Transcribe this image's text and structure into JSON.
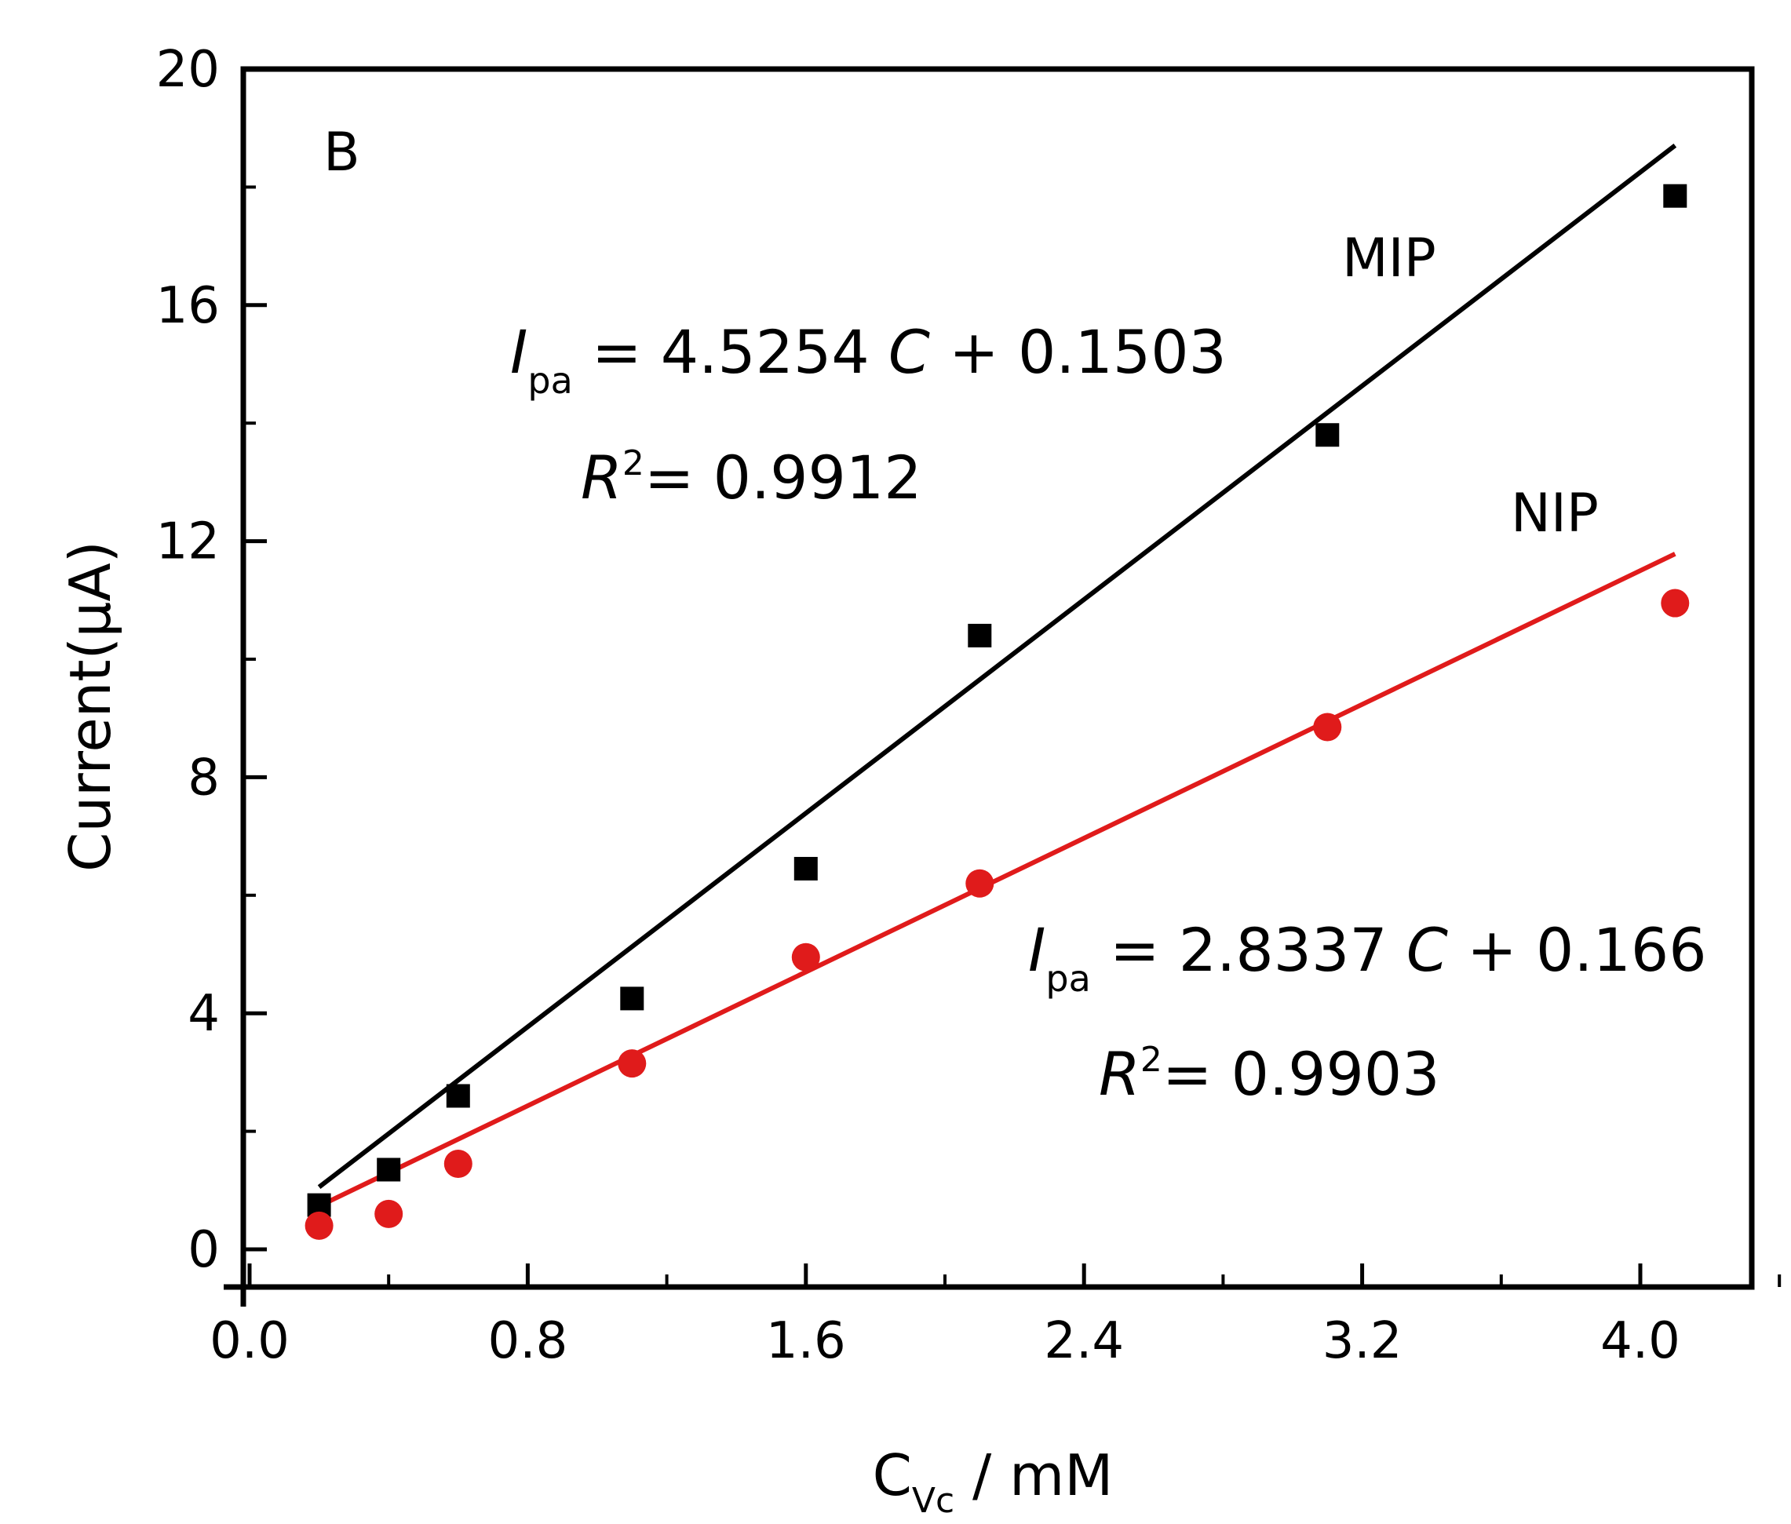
{
  "chart_data": {
    "type": "scatter",
    "panel_label": "B",
    "xlabel": {
      "main": "C",
      "sub": "Vc",
      "rest": " / mM"
    },
    "ylabel": "Current(μA)",
    "xlim": [
      0.0,
      4.4
    ],
    "ylim": [
      -0.6,
      20
    ],
    "xticks": [
      0.0,
      0.8,
      1.6,
      2.4,
      3.2,
      4.0
    ],
    "xtick_labels": [
      "0.0",
      "0.8",
      "1.6",
      "2.4",
      "3.2",
      "4.0"
    ],
    "yticks": [
      0,
      4,
      8,
      12,
      16,
      20
    ],
    "ytick_labels": [
      "0",
      "4",
      "8",
      "12",
      "16",
      "20"
    ],
    "grid": false,
    "series": [
      {
        "name": "MIP",
        "label": "MIP",
        "marker": "square",
        "color": "#000000",
        "x": [
          0.2,
          0.4,
          0.6,
          1.1,
          1.6,
          2.1,
          3.1,
          4.1
        ],
        "y": [
          0.75,
          1.35,
          2.6,
          4.25,
          6.45,
          10.4,
          13.8,
          17.85
        ],
        "fit": {
          "slope": 4.5254,
          "intercept": 0.1503,
          "x_start": 0.2,
          "x_end": 4.1
        },
        "equation": {
          "lhs": "I",
          "sub": "pa",
          "rhs": " = 4.5254 ",
          "var": "C",
          "tail": " + 0.1503"
        },
        "r2": {
          "sym": "R",
          "sup": "2",
          "val": "= 0.9912"
        }
      },
      {
        "name": "NIP",
        "label": "NIP",
        "marker": "circle",
        "color": "#e01b1b",
        "x": [
          0.2,
          0.4,
          0.6,
          1.1,
          1.6,
          2.1,
          3.1,
          4.1
        ],
        "y": [
          0.4,
          0.6,
          1.45,
          3.15,
          4.95,
          6.2,
          8.85,
          10.95
        ],
        "fit": {
          "slope": 2.8337,
          "intercept": 0.166,
          "x_start": 0.2,
          "x_end": 4.1
        },
        "equation": {
          "lhs": "I",
          "sub": "pa",
          "rhs": " = 2.8337 ",
          "var": "C",
          "tail": " + 0.166"
        },
        "r2": {
          "sym": "R",
          "sup": "2",
          "val": "= 0.9903"
        }
      }
    ]
  }
}
